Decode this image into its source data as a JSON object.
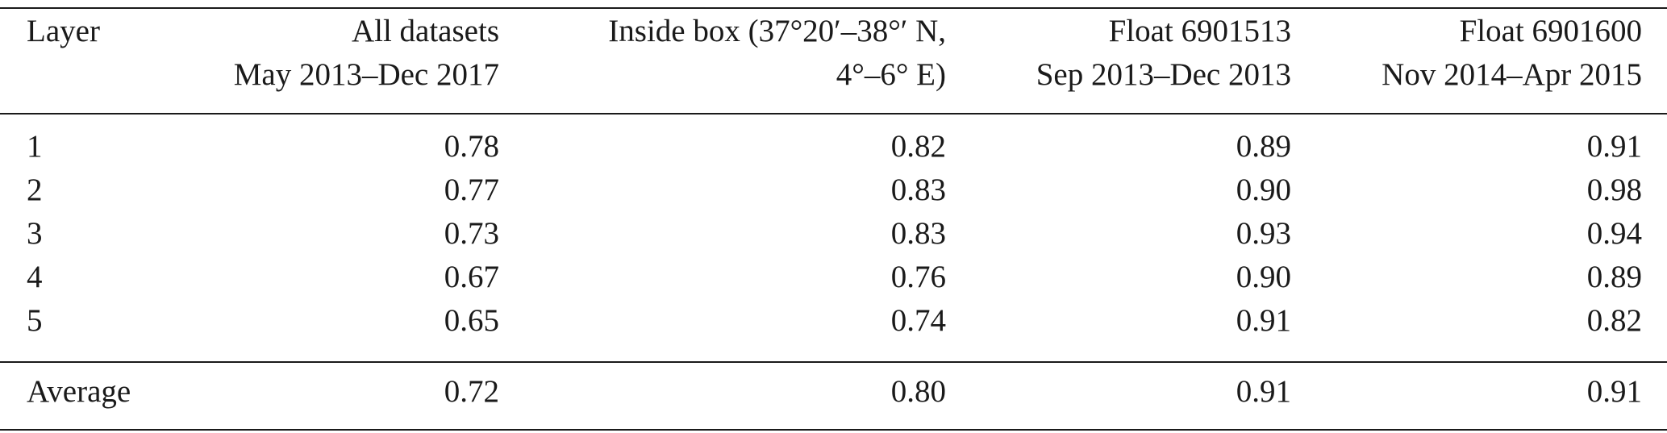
{
  "table": {
    "header": [
      [
        "Layer"
      ],
      [
        "All datasets",
        "May 2013–Dec 2017"
      ],
      [
        "Inside box (37°20′–38°′ N,",
        "4°–6° E)"
      ],
      [
        "Float 6901513",
        "Sep 2013–Dec 2013"
      ],
      [
        "Float 6901600",
        "Nov 2014–Apr 2015"
      ]
    ],
    "rows": [
      [
        "1",
        "0.78",
        "0.82",
        "0.89",
        "0.91"
      ],
      [
        "2",
        "0.77",
        "0.83",
        "0.90",
        "0.98"
      ],
      [
        "3",
        "0.73",
        "0.83",
        "0.93",
        "0.94"
      ],
      [
        "4",
        "0.67",
        "0.76",
        "0.90",
        "0.89"
      ],
      [
        "5",
        "0.65",
        "0.74",
        "0.91",
        "0.82"
      ]
    ],
    "footer": [
      "Average",
      "0.72",
      "0.80",
      "0.91",
      "0.91"
    ]
  }
}
